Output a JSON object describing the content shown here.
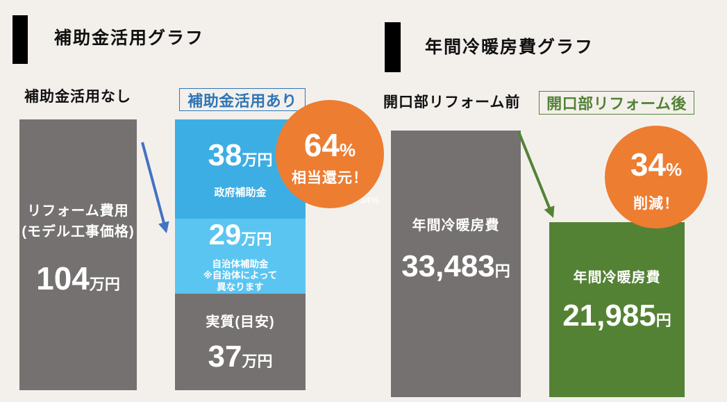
{
  "colors": {
    "background": "#f3f0ec",
    "title_marker": "#000000",
    "badge_orange": "#ed7d31",
    "arrow_blue": "#4472c4",
    "arrow_green": "#548235",
    "label_blue": "#2e75b6",
    "label_green": "#548235",
    "bar_text": "#ffffff"
  },
  "chart_data": [
    {
      "type": "bar",
      "stacked": true,
      "title": "補助金活用グラフ",
      "unit": "万円",
      "categories": [
        "補助金活用なし",
        "補助金活用あり"
      ],
      "bars": [
        {
          "segments": [
            {
              "name_lines": [
                "リフォーム費用",
                "(モデル工事価格)"
              ],
              "value": 104,
              "color": "#767171"
            }
          ]
        },
        {
          "segments": [
            {
              "name": "政府補助金",
              "value": 38,
              "color": "#3daee3"
            },
            {
              "name": "自治体補助金",
              "note_lines": [
                "※自治体によって",
                "異なります"
              ],
              "value": 29,
              "color": "#5bc5f2"
            },
            {
              "name": "実質(目安)",
              "value": 37,
              "color": "#767171"
            }
          ]
        }
      ],
      "annotation": {
        "value": 64,
        "unit": "%",
        "text": "相当還元！"
      },
      "extra_label": "34%"
    },
    {
      "type": "bar",
      "title": "年間冷暖房費グラフ",
      "unit": "円",
      "categories": [
        "開口部リフォーム前",
        "開口部リフォーム後"
      ],
      "bars": [
        {
          "segments": [
            {
              "name": "年間冷暖房費",
              "value": 33483,
              "color": "#767171"
            }
          ]
        },
        {
          "segments": [
            {
              "name": "年間冷暖房費",
              "value": 21985,
              "color": "#548235"
            }
          ]
        }
      ],
      "annotation": {
        "value": 34,
        "unit": "%",
        "text": "削減！"
      }
    }
  ]
}
